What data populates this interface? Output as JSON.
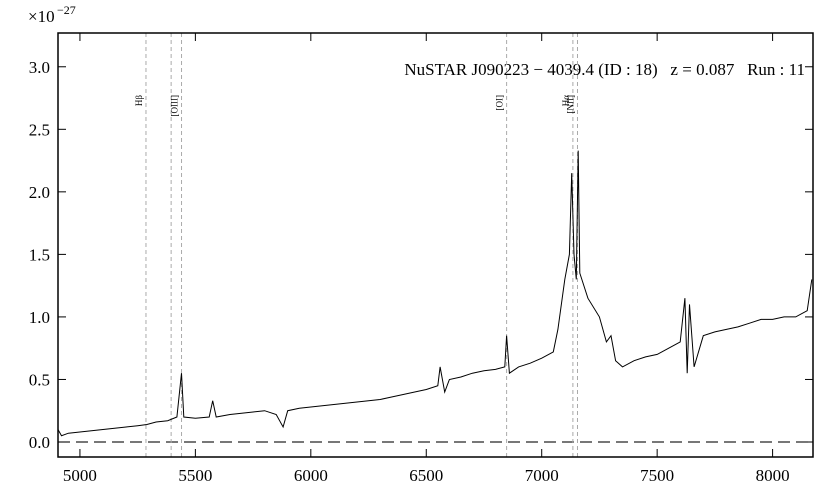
{
  "chart_data": {
    "type": "line",
    "y_multiplier": {
      "base": "×10",
      "exponent": "−27"
    },
    "annotation": "NuSTAR J090223 − 4039.4 (ID : 18)   z = 0.087   Run : 11",
    "x": [
      4905,
      4920,
      4950,
      5000,
      5050,
      5100,
      5150,
      5200,
      5250,
      5290,
      5330,
      5380,
      5420,
      5440,
      5450,
      5500,
      5560,
      5575,
      5590,
      5650,
      5700,
      5750,
      5800,
      5850,
      5880,
      5900,
      5950,
      6000,
      6100,
      6200,
      6300,
      6350,
      6400,
      6450,
      6500,
      6550,
      6560,
      6580,
      6600,
      6650,
      6700,
      6750,
      6800,
      6840,
      6848,
      6860,
      6900,
      6950,
      7000,
      7050,
      7070,
      7100,
      7120,
      7130,
      7140,
      7150,
      7158,
      7165,
      7200,
      7250,
      7280,
      7300,
      7320,
      7350,
      7400,
      7450,
      7500,
      7550,
      7600,
      7620,
      7630,
      7640,
      7660,
      7700,
      7750,
      7800,
      7850,
      7900,
      7950,
      8000,
      8050,
      8100,
      8150,
      8170
    ],
    "values": [
      0.1,
      0.05,
      0.07,
      0.08,
      0.09,
      0.1,
      0.11,
      0.12,
      0.13,
      0.14,
      0.16,
      0.17,
      0.2,
      0.55,
      0.2,
      0.19,
      0.2,
      0.33,
      0.2,
      0.22,
      0.23,
      0.24,
      0.25,
      0.22,
      0.12,
      0.25,
      0.27,
      0.28,
      0.3,
      0.32,
      0.34,
      0.36,
      0.38,
      0.4,
      0.42,
      0.45,
      0.6,
      0.4,
      0.5,
      0.52,
      0.55,
      0.57,
      0.58,
      0.6,
      0.85,
      0.55,
      0.6,
      0.63,
      0.67,
      0.72,
      0.9,
      1.3,
      1.5,
      2.15,
      1.5,
      1.3,
      2.33,
      1.35,
      1.15,
      1.0,
      0.8,
      0.85,
      0.65,
      0.6,
      0.65,
      0.68,
      0.7,
      0.75,
      0.8,
      1.15,
      0.55,
      1.1,
      0.6,
      0.85,
      0.88,
      0.9,
      0.92,
      0.95,
      0.98,
      0.98,
      1.0,
      1.0,
      1.05,
      1.3
    ],
    "color": "#000000",
    "baseline": 0,
    "vlines": [
      {
        "label": "Hβ",
        "x": 5286
      },
      {
        "x": 5395
      },
      {
        "label": "[OIII]",
        "x": 5440
      },
      {
        "label": "[OI]",
        "x": 6848
      },
      {
        "label": "Hα",
        "x": 7135
      },
      {
        "label": "[NII]",
        "x": 7155
      }
    ],
    "xlim": [
      4905,
      8175
    ],
    "ylim": [
      -0.12,
      3.27
    ],
    "xticks": [
      5000,
      5500,
      6000,
      6500,
      7000,
      7500,
      8000
    ],
    "yticks": [
      {
        "value": 0,
        "label": "0.0"
      },
      0.5,
      {
        "value": 1,
        "label": "1.0"
      },
      1.5,
      {
        "value": 2,
        "label": "2.0"
      },
      2.5,
      {
        "value": 3,
        "label": "3.0"
      }
    ]
  }
}
